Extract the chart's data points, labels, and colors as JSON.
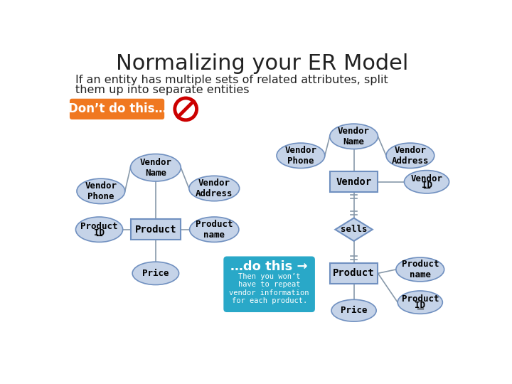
{
  "title": "Normalizing your ER Model",
  "subtitle_line1": "If an entity has multiple sets of related attributes, split",
  "subtitle_line2": "them up into separate entities",
  "dont_label": "Don’t do this…",
  "do_label": "…do this →",
  "do_subtext": "Then you won’t\nhave to repeat\nvendor information\nfor each product.",
  "bg_color": "#ffffff",
  "title_color": "#222222",
  "subtitle_color": "#222222",
  "dont_btn_color": "#F07820",
  "do_btn_color": "#29A8C8",
  "ellipse_face": "#C5D3E8",
  "ellipse_edge": "#7090C0",
  "rect_face": "#C5D3E8",
  "rect_edge": "#7090C0",
  "diamond_face": "#C5D3E8",
  "diamond_edge": "#7090C0",
  "line_color": "#8899AA",
  "no_symbol_color": "#CC0000",
  "text_color": "#000000"
}
